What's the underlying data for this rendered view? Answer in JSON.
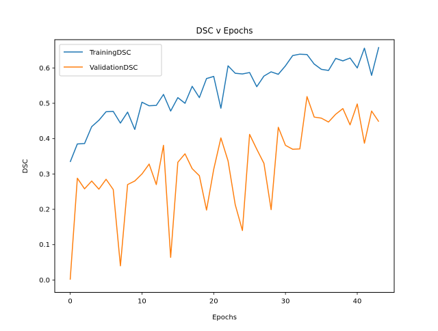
{
  "chart_data": {
    "type": "line",
    "title": "DSC v Epochs",
    "xlabel": "Epochs",
    "ylabel": "DSC",
    "xlim": [
      -2.15,
      45.15
    ],
    "ylim": [
      -0.035,
      0.68
    ],
    "xticks": [
      0,
      10,
      20,
      30,
      40
    ],
    "xtick_labels": [
      "0",
      "10",
      "20",
      "30",
      "40"
    ],
    "yticks": [
      0.0,
      0.1,
      0.2,
      0.3,
      0.4,
      0.5,
      0.6
    ],
    "ytick_labels": [
      "0.0",
      "0.1",
      "0.2",
      "0.3",
      "0.4",
      "0.5",
      "0.6"
    ],
    "grid": false,
    "legend_position": "upper-left",
    "x": [
      0,
      1,
      2,
      3,
      4,
      5,
      6,
      7,
      8,
      9,
      10,
      11,
      12,
      13,
      14,
      15,
      16,
      17,
      18,
      19,
      20,
      21,
      22,
      23,
      24,
      25,
      26,
      27,
      28,
      29,
      30,
      31,
      32,
      33,
      34,
      35,
      36,
      37,
      38,
      39,
      40,
      41,
      42,
      43
    ],
    "series": [
      {
        "name": "TrainingDSC",
        "color": "#1f77b4",
        "values": [
          0.334,
          0.385,
          0.386,
          0.434,
          0.452,
          0.476,
          0.477,
          0.444,
          0.475,
          0.426,
          0.503,
          0.493,
          0.494,
          0.525,
          0.478,
          0.516,
          0.5,
          0.548,
          0.516,
          0.57,
          0.576,
          0.486,
          0.606,
          0.585,
          0.583,
          0.587,
          0.547,
          0.577,
          0.589,
          0.582,
          0.606,
          0.635,
          0.639,
          0.638,
          0.611,
          0.596,
          0.593,
          0.627,
          0.62,
          0.628,
          0.6,
          0.656,
          0.579,
          0.659
        ]
      },
      {
        "name": "ValidationDSC",
        "color": "#ff7f0e",
        "values": [
          0.001,
          0.288,
          0.258,
          0.28,
          0.257,
          0.285,
          0.256,
          0.04,
          0.27,
          0.28,
          0.3,
          0.328,
          0.27,
          0.381,
          0.064,
          0.333,
          0.357,
          0.315,
          0.295,
          0.198,
          0.313,
          0.402,
          0.337,
          0.213,
          0.14,
          0.412,
          0.37,
          0.33,
          0.199,
          0.432,
          0.381,
          0.37,
          0.371,
          0.519,
          0.461,
          0.458,
          0.447,
          0.469,
          0.485,
          0.439,
          0.498,
          0.387,
          0.478,
          0.448
        ]
      }
    ]
  }
}
